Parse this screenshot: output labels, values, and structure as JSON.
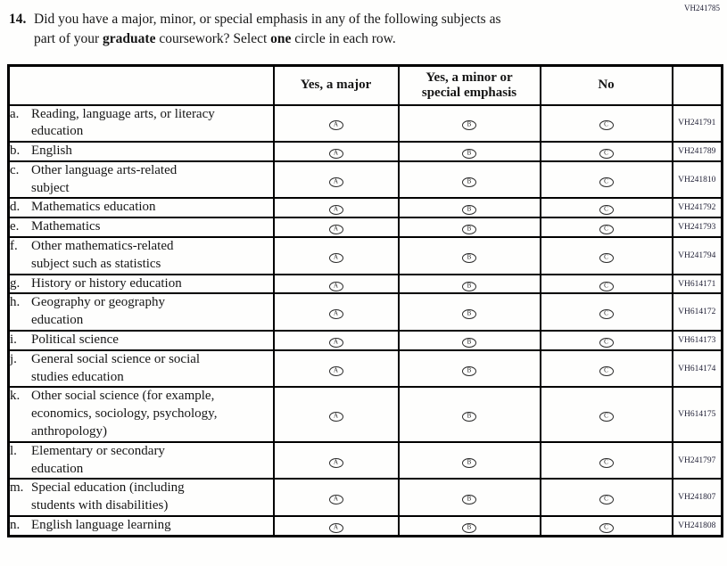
{
  "page_code": "VH241785",
  "question": {
    "number": "14.",
    "segments": [
      {
        "text": "Did you have a major, minor, or special emphasis in any of the following subjects as",
        "bold": false,
        "br": true
      },
      {
        "text": "part of your ",
        "bold": false
      },
      {
        "text": "graduate",
        "bold": true
      },
      {
        "text": " coursework? Select ",
        "bold": false
      },
      {
        "text": "one",
        "bold": true
      },
      {
        "text": " circle in each row.",
        "bold": false
      }
    ]
  },
  "table": {
    "columns": [
      {
        "lines": [
          ""
        ]
      },
      {
        "lines": [
          "Yes, a major"
        ]
      },
      {
        "lines": [
          "Yes, a minor or",
          "special emphasis"
        ]
      },
      {
        "lines": [
          "No"
        ]
      },
      {
        "lines": [
          ""
        ]
      }
    ],
    "options": [
      {
        "letter": "A",
        "meaning": "Yes, a major"
      },
      {
        "letter": "B",
        "meaning": "Yes, a minor or special emphasis"
      },
      {
        "letter": "C",
        "meaning": "No"
      }
    ],
    "rows": [
      {
        "letter": "a.",
        "lines": [
          "Reading, language arts, or literacy",
          "education"
        ],
        "code": "VH241791"
      },
      {
        "letter": "b.",
        "lines": [
          "English"
        ],
        "code": "VH241789"
      },
      {
        "letter": "c.",
        "lines": [
          "Other language arts-related",
          "subject"
        ],
        "code": "VH241810"
      },
      {
        "letter": "d.",
        "lines": [
          "Mathematics education"
        ],
        "code": "VH241792"
      },
      {
        "letter": "e.",
        "lines": [
          "Mathematics"
        ],
        "code": "VH241793"
      },
      {
        "letter": "f.",
        "lines": [
          "Other mathematics-related",
          "subject such as statistics"
        ],
        "code": "VH241794"
      },
      {
        "letter": "g.",
        "lines": [
          "History or history education"
        ],
        "code": "VH614171"
      },
      {
        "letter": "h.",
        "lines": [
          "Geography or geography",
          "education"
        ],
        "code": "VH614172"
      },
      {
        "letter": "i.",
        "lines": [
          "Political science"
        ],
        "code": "VH614173"
      },
      {
        "letter": "j.",
        "lines": [
          "General social science or social",
          "studies education"
        ],
        "code": "VH614174"
      },
      {
        "letter": "k.",
        "lines": [
          "Other social science (for example,",
          "economics, sociology, psychology,",
          "anthropology)"
        ],
        "code": "VH614175"
      },
      {
        "letter": "l.",
        "lines": [
          "Elementary or secondary",
          "education"
        ],
        "code": "VH241797"
      },
      {
        "letter": "m.",
        "lines": [
          "Special education (including",
          "students with disabilities)"
        ],
        "code": "VH241807"
      },
      {
        "letter": "n.",
        "lines": [
          "English language learning"
        ],
        "code": "VH241808"
      }
    ]
  }
}
